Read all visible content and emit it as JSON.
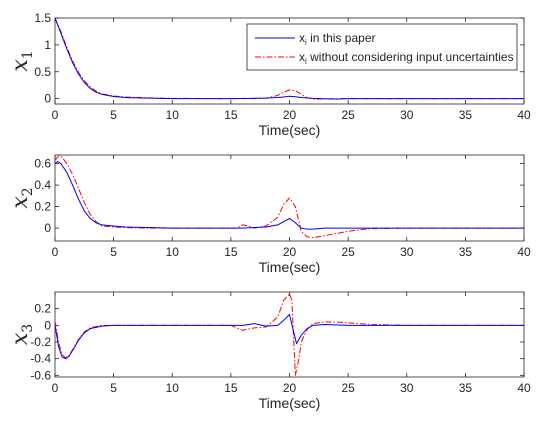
{
  "chart_data": [
    {
      "type": "line",
      "ylabel": "x",
      "ylabel_sub": "1",
      "xlabel": "Time(sec)",
      "xlim": [
        0,
        40
      ],
      "ylim": [
        -0.1,
        1.5
      ],
      "xticks": [
        0,
        5,
        10,
        15,
        20,
        25,
        30,
        35,
        40
      ],
      "yticks": [
        0,
        0.5,
        1,
        1.5
      ],
      "ytick_labels": [
        "0",
        "0.5",
        "1",
        "1.5"
      ],
      "grid": false,
      "legend": {
        "position": "top-right",
        "entries": [
          {
            "prefix": "x",
            "sub": "i",
            "text": " in this paper",
            "color": "#0000ff",
            "dash": "solid"
          },
          {
            "prefix": "x",
            "sub": "i",
            "text": " without considering input uncertainties",
            "color": "#ff0000",
            "dash": "dashdot"
          }
        ]
      },
      "series": [
        {
          "color": "#0000ff",
          "dash": "solid",
          "x": [
            0,
            0.5,
            1,
            1.5,
            2,
            2.5,
            3,
            3.5,
            4,
            5,
            6,
            8,
            10,
            15,
            17,
            18,
            19,
            19.5,
            20,
            20.5,
            21,
            22,
            24,
            25,
            26,
            30,
            35,
            40
          ],
          "y": [
            1.5,
            1.22,
            0.93,
            0.67,
            0.46,
            0.3,
            0.19,
            0.12,
            0.08,
            0.04,
            0.02,
            0.01,
            0.0,
            0.0,
            0.005,
            0.01,
            0.02,
            0.03,
            0.045,
            0.035,
            0.02,
            0.005,
            -0.01,
            0.0,
            0.0,
            0.0,
            0.0,
            0.0
          ]
        },
        {
          "color": "#ff0000",
          "dash": "dashdot",
          "x": [
            0,
            0.5,
            1,
            1.5,
            2,
            2.5,
            3,
            3.5,
            4,
            5,
            6,
            8,
            10,
            15,
            18,
            19,
            19.5,
            20,
            20.5,
            21,
            21.5,
            22,
            23,
            25,
            30,
            35,
            40
          ],
          "y": [
            1.5,
            1.25,
            0.96,
            0.7,
            0.49,
            0.33,
            0.22,
            0.14,
            0.09,
            0.05,
            0.03,
            0.015,
            0.005,
            0.0,
            0.01,
            0.06,
            0.12,
            0.16,
            0.15,
            0.08,
            0.02,
            -0.01,
            -0.005,
            0.0,
            0.0,
            0.0,
            0.0
          ]
        }
      ]
    },
    {
      "type": "line",
      "ylabel": "x",
      "ylabel_sub": "2",
      "xlabel": "Time(sec)",
      "xlim": [
        0,
        40
      ],
      "ylim": [
        -0.12,
        0.68
      ],
      "xticks": [
        0,
        5,
        10,
        15,
        20,
        25,
        30,
        35,
        40
      ],
      "yticks": [
        0,
        0.2,
        0.4,
        0.6
      ],
      "ytick_labels": [
        "0",
        "0.2",
        "0.4",
        "0.6"
      ],
      "grid": false,
      "series": [
        {
          "color": "#0000ff",
          "dash": "solid",
          "x": [
            0,
            0.2,
            0.5,
            1,
            1.5,
            2,
            2.5,
            3,
            3.5,
            4,
            5,
            6,
            8,
            10,
            12,
            15,
            16,
            17,
            18,
            19,
            19.5,
            20,
            20.5,
            21,
            21.5,
            22,
            23,
            25,
            30,
            35,
            40
          ],
          "y": [
            0.6,
            0.62,
            0.6,
            0.52,
            0.4,
            0.27,
            0.16,
            0.09,
            0.05,
            0.03,
            0.02,
            0.01,
            0.005,
            0.0,
            0.0,
            0.0,
            0.0,
            0.005,
            0.01,
            0.03,
            0.06,
            0.09,
            0.05,
            0.0,
            -0.01,
            -0.01,
            0.0,
            0.0,
            0.0,
            0.0,
            0.0
          ]
        },
        {
          "color": "#ff0000",
          "dash": "dashdot",
          "x": [
            0,
            0.3,
            0.6,
            1,
            1.5,
            2,
            2.5,
            3,
            3.5,
            4,
            5,
            6,
            8,
            10,
            14,
            15.5,
            16,
            16.5,
            17,
            18,
            19,
            19.5,
            20,
            20.5,
            21,
            21.5,
            22,
            23,
            24,
            25,
            26,
            27,
            30,
            35,
            40
          ],
          "y": [
            0.63,
            0.67,
            0.66,
            0.6,
            0.5,
            0.37,
            0.24,
            0.13,
            0.06,
            0.02,
            0.01,
            0.005,
            0.0,
            0.0,
            0.0,
            0.0,
            0.03,
            0.02,
            0.0,
            0.02,
            0.1,
            0.22,
            0.28,
            0.2,
            -0.03,
            -0.08,
            -0.09,
            -0.07,
            -0.05,
            -0.03,
            -0.015,
            -0.005,
            0.0,
            0.0,
            0.0
          ]
        }
      ]
    },
    {
      "type": "line",
      "ylabel": "x",
      "ylabel_sub": "3",
      "xlabel": "Time(sec)",
      "xlim": [
        0,
        40
      ],
      "ylim": [
        -0.62,
        0.4
      ],
      "xticks": [
        0,
        5,
        10,
        15,
        20,
        25,
        30,
        35,
        40
      ],
      "yticks": [
        -0.6,
        -0.4,
        -0.2,
        0,
        0.2
      ],
      "ytick_labels": [
        "-0.6",
        "-0.4",
        "-0.2",
        "0",
        "0.2"
      ],
      "grid": false,
      "series": [
        {
          "color": "#0000ff",
          "dash": "solid",
          "x": [
            0,
            0.3,
            0.6,
            0.9,
            1.2,
            1.6,
            2,
            2.5,
            3,
            4,
            5,
            8,
            10,
            15,
            16,
            17,
            18,
            19,
            19.5,
            20,
            20.3,
            20.6,
            21,
            21.5,
            22,
            23,
            25,
            30,
            35,
            40
          ],
          "y": [
            0.0,
            -0.25,
            -0.38,
            -0.4,
            -0.37,
            -0.28,
            -0.18,
            -0.09,
            -0.04,
            -0.01,
            0.0,
            0.0,
            0.0,
            0.0,
            0.0,
            0.02,
            -0.01,
            0.0,
            0.06,
            0.13,
            -0.05,
            -0.22,
            -0.12,
            -0.04,
            0.0,
            0.01,
            0.0,
            0.0,
            0.0,
            0.0
          ]
        },
        {
          "color": "#ff0000",
          "dash": "dashdot",
          "x": [
            0,
            0.3,
            0.6,
            0.9,
            1.2,
            1.6,
            2,
            2.5,
            3,
            4,
            5,
            8,
            10,
            15,
            16,
            17,
            18,
            19,
            19.5,
            20,
            20.2,
            20.5,
            20.8,
            21,
            21.5,
            22,
            23,
            24,
            25,
            27,
            30,
            35,
            40
          ],
          "y": [
            0.05,
            -0.2,
            -0.35,
            -0.39,
            -0.36,
            -0.27,
            -0.17,
            -0.08,
            -0.03,
            0.0,
            0.0,
            0.0,
            0.0,
            0.0,
            -0.06,
            -0.03,
            -0.02,
            0.1,
            0.3,
            0.38,
            0.3,
            -0.6,
            -0.4,
            -0.2,
            -0.05,
            0.02,
            0.04,
            0.04,
            0.03,
            0.01,
            0.0,
            0.0,
            0.0
          ]
        }
      ]
    }
  ]
}
